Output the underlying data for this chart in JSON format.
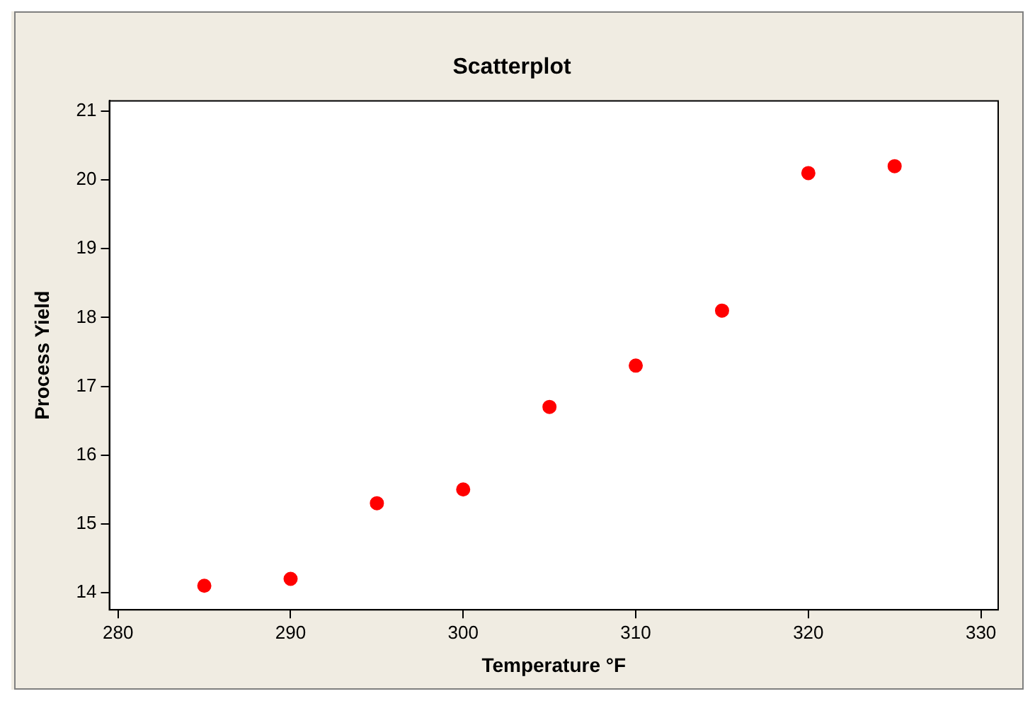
{
  "chart_data": {
    "type": "scatter",
    "title": "Scatterplot",
    "xlabel": "Temperature °F",
    "ylabel": "Process Yield",
    "x": [
      285,
      290,
      295,
      300,
      305,
      310,
      315,
      320,
      325
    ],
    "series": [
      {
        "color": "#ff0000",
        "values": [
          14.1,
          14.2,
          15.3,
          15.5,
          16.7,
          17.3,
          18.1,
          20.1,
          20.2
        ]
      }
    ],
    "xlim": [
      279.5,
      331
    ],
    "xticks": [
      280,
      290,
      300,
      310,
      320,
      330
    ],
    "ylim": [
      13.75,
      21.15
    ],
    "yticks": [
      14,
      15,
      16,
      17,
      18,
      19,
      20,
      21
    ],
    "marker": "circle",
    "grid": false,
    "legend": false
  }
}
